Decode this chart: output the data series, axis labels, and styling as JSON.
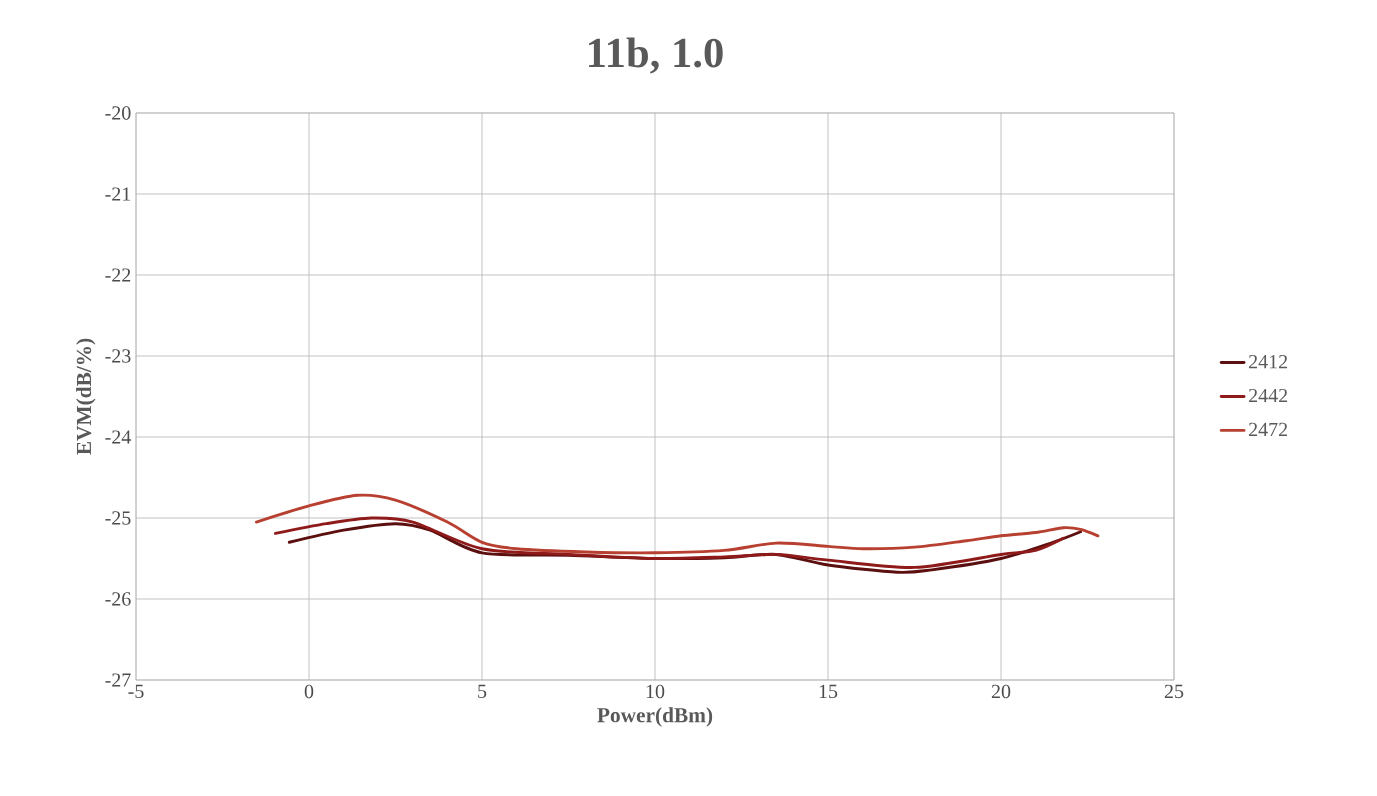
{
  "chart_data": {
    "type": "line",
    "title": "11b, 1.0",
    "xlabel": "Power(dBm)",
    "ylabel": "EVM(dB/%)",
    "xlim": [
      -5,
      25
    ],
    "xticks": [
      -5,
      0,
      5,
      10,
      15,
      20,
      25
    ],
    "ylim": [
      -27,
      -20
    ],
    "yticks": [
      -27,
      -26,
      -25,
      -24,
      -23,
      -22,
      -21,
      -20
    ],
    "grid": true,
    "legend": "right",
    "series": [
      {
        "name": "2412",
        "color": "#5b0f0f",
        "x": [
          -0.57,
          1,
          2.5,
          3.5,
          5,
          7.5,
          10,
          12,
          13.5,
          15,
          17,
          18,
          20,
          21.5,
          22.3
        ],
        "values": [
          -25.3,
          -25.15,
          -25.07,
          -25.15,
          -25.43,
          -25.46,
          -25.5,
          -25.49,
          -25.45,
          -25.58,
          -25.67,
          -25.64,
          -25.5,
          -25.3,
          -25.17
        ]
      },
      {
        "name": "2442",
        "color": "#8f1a1a",
        "x": [
          -0.97,
          0.5,
          1.8,
          3,
          5,
          7.5,
          10,
          12,
          13.5,
          15,
          17.5,
          20,
          21,
          21.8
        ],
        "values": [
          -25.19,
          -25.07,
          -25.0,
          -25.05,
          -25.38,
          -25.45,
          -25.5,
          -25.48,
          -25.45,
          -25.52,
          -25.61,
          -25.45,
          -25.4,
          -25.25
        ]
      },
      {
        "name": "2472",
        "color": "#b84030",
        "x": [
          -1.52,
          0,
          1.4,
          2.5,
          4,
          5,
          6,
          8,
          10,
          12,
          13.5,
          15,
          16,
          17.5,
          19,
          20,
          21,
          21.8,
          22.3,
          22.8
        ],
        "values": [
          -25.05,
          -24.85,
          -24.72,
          -24.78,
          -25.05,
          -25.3,
          -25.38,
          -25.42,
          -25.43,
          -25.4,
          -25.31,
          -25.35,
          -25.38,
          -25.36,
          -25.28,
          -25.22,
          -25.18,
          -25.12,
          -25.14,
          -25.22
        ]
      }
    ]
  }
}
